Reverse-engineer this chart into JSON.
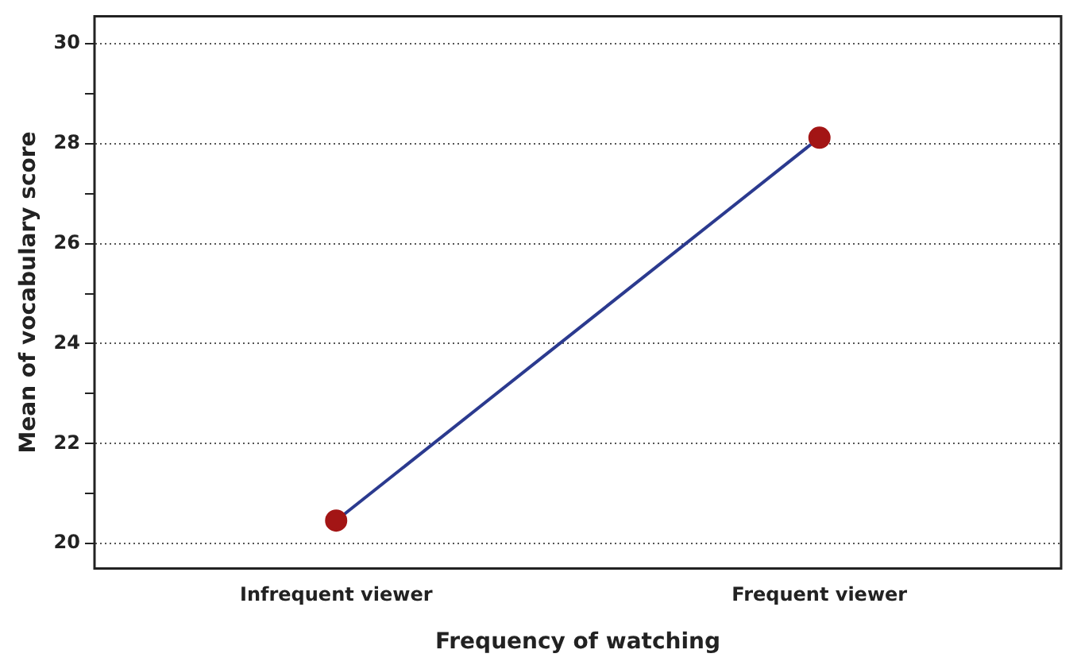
{
  "chart_data": {
    "type": "line",
    "xlabel": "Frequency of watching",
    "ylabel": "Mean of vocabulary score",
    "categories": [
      "Infrequent viewer",
      "Frequent viewer"
    ],
    "series": [
      {
        "color": "#2b3a8f",
        "colors": [
          "#a31515",
          "#a31515"
        ],
        "values": [
          20.46,
          28.12
        ]
      }
    ],
    "ylim": [
      19.5,
      30.55
    ],
    "yticks": [
      20,
      {
        "value": 21,
        "label": null
      },
      22,
      {
        "value": 23,
        "label": null
      },
      24,
      {
        "value": 25,
        "label": null
      },
      26,
      {
        "value": 27,
        "label": null
      },
      28,
      {
        "value": 29,
        "label": null
      },
      30
    ],
    "grid": "y",
    "legend": false,
    "marker": "circle",
    "line_style": "solid"
  }
}
